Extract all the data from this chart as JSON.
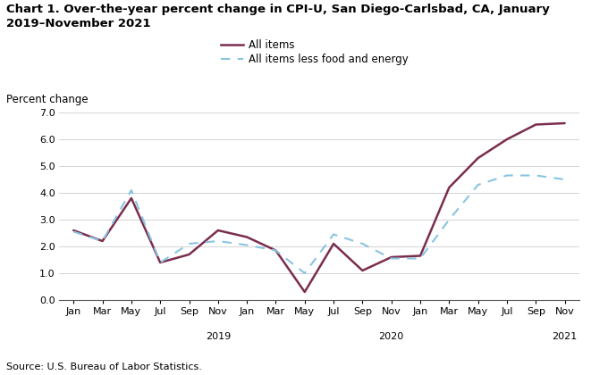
{
  "title": "Chart 1. Over-the-year percent change in CPI-U, San Diego-Carlsbad, CA, January\n2019–November 2021",
  "ylabel": "Percent change",
  "source": "Source: U.S. Bureau of Labor Statistics.",
  "x_labels": [
    "Jan",
    "Mar",
    "May",
    "Jul",
    "Sep",
    "Nov",
    "Jan",
    "Mar",
    "May",
    "Jul",
    "Sep",
    "Nov",
    "Jan",
    "Mar",
    "May",
    "Jul",
    "Sep",
    "Nov"
  ],
  "x_year_labels": [
    [
      "2019",
      5
    ],
    [
      "2020",
      11
    ],
    [
      "2021",
      17
    ]
  ],
  "all_items": [
    2.6,
    2.2,
    3.8,
    1.4,
    1.7,
    2.6,
    2.35,
    1.85,
    0.3,
    2.1,
    1.1,
    1.6,
    1.65,
    4.2,
    5.3,
    6.0,
    6.55,
    6.6
  ],
  "all_items_less": [
    2.55,
    2.2,
    4.1,
    1.4,
    2.1,
    2.2,
    2.05,
    1.85,
    1.0,
    2.45,
    2.1,
    1.55,
    1.55,
    3.0,
    4.3,
    4.65,
    4.65,
    4.5
  ],
  "all_items_color": "#7B2D4E",
  "all_items_less_color": "#89C4E1",
  "ylim": [
    0.0,
    7.0
  ],
  "yticks": [
    0.0,
    1.0,
    2.0,
    3.0,
    4.0,
    5.0,
    6.0,
    7.0
  ],
  "legend_all_items": "All items",
  "legend_all_items_less": "All items less food and energy",
  "background_color": "#ffffff",
  "grid_color": "#cccccc",
  "title_fontsize": 9.5,
  "tick_fontsize": 8,
  "source_fontsize": 8
}
